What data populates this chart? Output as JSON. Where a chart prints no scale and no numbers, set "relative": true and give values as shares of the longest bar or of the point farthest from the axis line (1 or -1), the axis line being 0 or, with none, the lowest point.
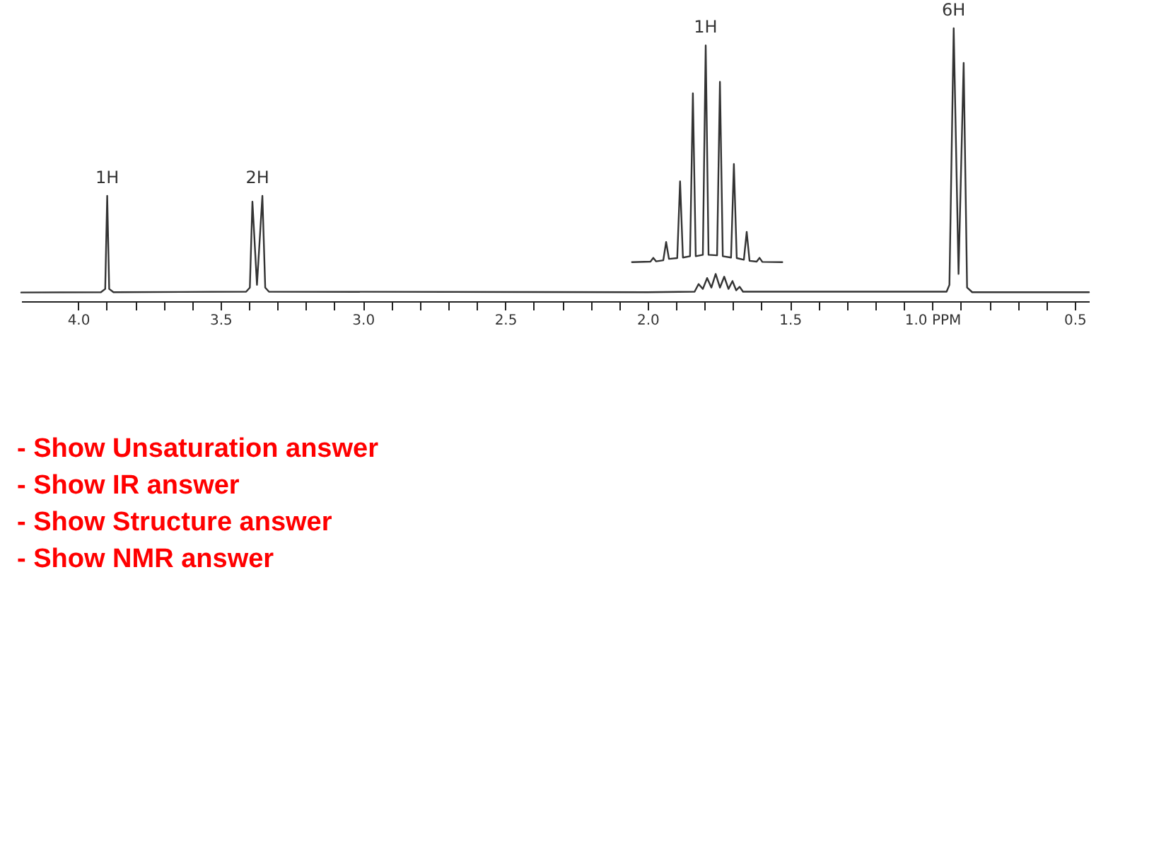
{
  "chart_data": {
    "type": "line",
    "relative": true,
    "marker": "none",
    "line_style": "solid",
    "grid": false,
    "tick_labels": "x",
    "xlim": [
      4.2,
      0.45
    ],
    "xticks": [
      {
        "value": 4.0,
        "label": "4.0"
      },
      {
        "value": 3.9,
        "label": null
      },
      {
        "value": 3.8,
        "label": null
      },
      {
        "value": 3.7,
        "label": null
      },
      {
        "value": 3.6,
        "label": null
      },
      {
        "value": 3.5,
        "label": "3.5"
      },
      {
        "value": 3.4,
        "label": null
      },
      {
        "value": 3.3,
        "label": null
      },
      {
        "value": 3.2,
        "label": null
      },
      {
        "value": 3.1,
        "label": null
      },
      {
        "value": 3.0,
        "label": "3.0"
      },
      {
        "value": 2.9,
        "label": null
      },
      {
        "value": 2.8,
        "label": null
      },
      {
        "value": 2.7,
        "label": null
      },
      {
        "value": 2.6,
        "label": null
      },
      {
        "value": 2.5,
        "label": "2.5"
      },
      {
        "value": 2.4,
        "label": null
      },
      {
        "value": 2.3,
        "label": null
      },
      {
        "value": 2.2,
        "label": null
      },
      {
        "value": 2.1,
        "label": null
      },
      {
        "value": 2.0,
        "label": "2.0"
      },
      {
        "value": 1.9,
        "label": null
      },
      {
        "value": 1.8,
        "label": null
      },
      {
        "value": 1.7,
        "label": null
      },
      {
        "value": 1.6,
        "label": null
      },
      {
        "value": 1.5,
        "label": "1.5"
      },
      {
        "value": 1.4,
        "label": null
      },
      {
        "value": 1.3,
        "label": null
      },
      {
        "value": 1.2,
        "label": null
      },
      {
        "value": 1.1,
        "label": null
      },
      {
        "value": 1.0,
        "label": "1.0 PPM"
      },
      {
        "value": 0.9,
        "label": null
      },
      {
        "value": 0.8,
        "label": null
      },
      {
        "value": 0.7,
        "label": null
      },
      {
        "value": 0.6,
        "label": null
      },
      {
        "value": 0.5,
        "label": "0.5"
      }
    ],
    "series": [
      {
        "color": "#333333",
        "x": [
          4.2,
          3.92,
          3.905,
          3.898,
          3.891,
          3.876,
          3.41,
          3.397,
          3.388,
          3.372,
          3.353,
          3.343,
          3.33,
          2.0,
          1.835,
          1.821,
          1.806,
          1.791,
          1.776,
          1.761,
          1.746,
          1.731,
          1.716,
          1.702,
          1.689,
          1.677,
          1.665,
          0.95,
          0.94,
          0.925,
          0.908,
          0.89,
          0.878,
          0.86,
          0.45
        ],
        "values": [
          0.032,
          0.033,
          0.045,
          0.386,
          0.045,
          0.033,
          0.035,
          0.05,
          0.365,
          0.06,
          0.386,
          0.05,
          0.035,
          0.033,
          0.035,
          0.063,
          0.045,
          0.085,
          0.05,
          0.1,
          0.05,
          0.09,
          0.045,
          0.074,
          0.04,
          0.053,
          0.035,
          0.035,
          0.06,
          1.0,
          0.1,
          0.873,
          0.05,
          0.033,
          0.033
        ]
      },
      {
        "color": "#333333",
        "x": [
          2.055,
          1.99,
          1.98,
          1.97,
          1.945,
          1.935,
          1.925,
          1.896,
          1.886,
          1.876,
          1.851,
          1.841,
          1.831,
          1.806,
          1.796,
          1.786,
          1.756,
          1.746,
          1.736,
          1.707,
          1.697,
          1.687,
          1.662,
          1.652,
          1.642,
          1.617,
          1.607,
          1.597,
          1.527
        ],
        "values": [
          0.143,
          0.145,
          0.159,
          0.146,
          0.15,
          0.217,
          0.155,
          0.158,
          0.439,
          0.16,
          0.165,
          0.762,
          0.165,
          0.17,
          0.937,
          0.17,
          0.168,
          0.804,
          0.165,
          0.16,
          0.503,
          0.158,
          0.152,
          0.254,
          0.148,
          0.145,
          0.159,
          0.144,
          0.143
        ]
      }
    ],
    "annotations": [
      {
        "text": "1H",
        "x": 3.898,
        "y": 0.386
      },
      {
        "text": "2H",
        "x": 3.37,
        "y": 0.386
      },
      {
        "text": "1H",
        "x": 1.796,
        "y": 0.937
      },
      {
        "text": "6H",
        "x": 0.925,
        "y": 1.0
      },
      "- Show Unsaturation answer",
      "- Show IR answer",
      "- Show Structure answer",
      "- Show NMR answer"
    ]
  }
}
